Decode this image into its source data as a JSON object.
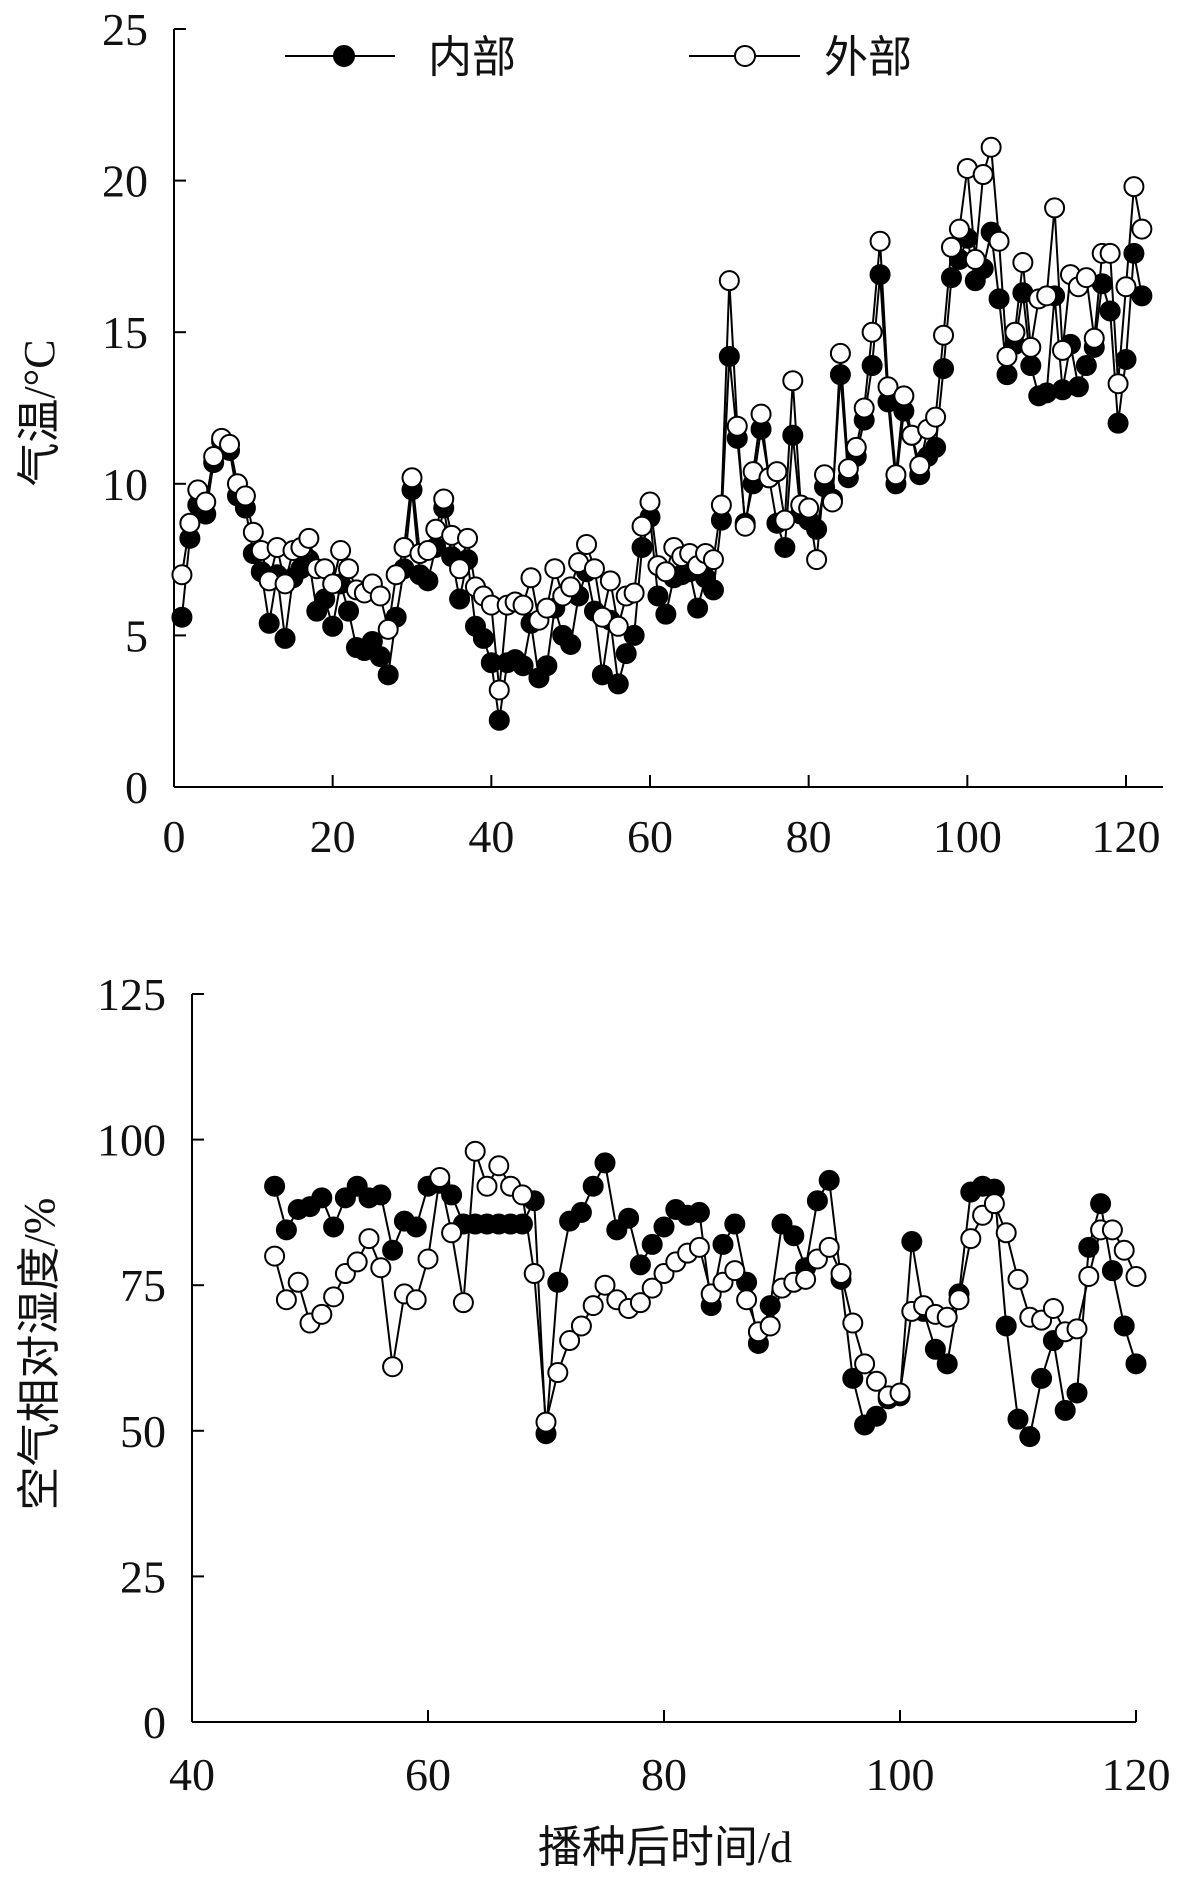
{
  "chart_data": [
    {
      "type": "line",
      "title": "",
      "xlabel": "",
      "ylabel": "气温/°C",
      "xlim": [
        0,
        120
      ],
      "ylim": [
        0,
        25
      ],
      "xticks": [
        "0",
        "20",
        "40",
        "60",
        "80",
        "100",
        "120"
      ],
      "yticks": [
        "0",
        "5",
        "10",
        "15",
        "20",
        "25"
      ],
      "legend": {
        "placement": "top",
        "entries": [
          "内部",
          "外部"
        ]
      },
      "x_start": 1,
      "series": [
        {
          "name": "内部",
          "marker": "filled-circle",
          "values": [
            5.6,
            8.2,
            9.3,
            9.0,
            10.7,
            11.4,
            11.1,
            9.6,
            9.2,
            7.7,
            7.1,
            5.4,
            7.0,
            4.9,
            6.9,
            7.2,
            7.5,
            5.8,
            6.2,
            5.3,
            6.7,
            5.8,
            4.6,
            4.5,
            4.8,
            4.3,
            3.7,
            5.6,
            7.2,
            9.8,
            7.0,
            6.8,
            7.9,
            9.2,
            7.6,
            6.2,
            7.5,
            5.3,
            4.9,
            4.1,
            2.2,
            4.1,
            4.2,
            4.0,
            5.4,
            3.6,
            4.0,
            5.9,
            5.0,
            4.7,
            6.3,
            7.1,
            5.8,
            3.7,
            5.5,
            3.4,
            4.4,
            5.0,
            7.9,
            8.9,
            6.3,
            5.7,
            6.9,
            7.0,
            7.1,
            5.9,
            6.9,
            6.5,
            8.8,
            14.2,
            11.5,
            8.7,
            10.0,
            11.8,
            10.2,
            8.7,
            7.9,
            11.6,
            9.0,
            8.8,
            8.5,
            9.9,
            9.5,
            13.6,
            10.2,
            10.9,
            12.1,
            13.9,
            16.9,
            12.7,
            10.0,
            12.4,
            11.6,
            10.3,
            10.9,
            11.2,
            13.8,
            16.8,
            17.4,
            18.1,
            16.7,
            17.1,
            18.3,
            16.1,
            13.6,
            14.6,
            16.3,
            13.9,
            12.9,
            13.0,
            16.2,
            13.1,
            14.6,
            13.2,
            13.9,
            14.5,
            16.6,
            15.7,
            12.0,
            14.1,
            17.6,
            16.2
          ]
        },
        {
          "name": "外部",
          "marker": "open-circle",
          "values": [
            7.0,
            8.7,
            9.8,
            9.4,
            10.9,
            11.5,
            11.3,
            10.0,
            9.6,
            8.4,
            7.8,
            6.8,
            7.9,
            6.7,
            7.8,
            7.9,
            8.2,
            7.2,
            7.2,
            6.7,
            7.8,
            7.2,
            6.5,
            6.4,
            6.7,
            6.3,
            5.2,
            7.0,
            7.9,
            10.2,
            7.7,
            7.8,
            8.5,
            9.5,
            8.3,
            7.2,
            8.2,
            6.6,
            6.3,
            6.0,
            3.2,
            6.0,
            6.1,
            6.0,
            6.9,
            5.5,
            5.9,
            7.2,
            6.3,
            6.6,
            7.4,
            8.0,
            7.2,
            5.6,
            6.8,
            5.3,
            6.3,
            6.4,
            8.6,
            9.4,
            7.3,
            7.1,
            7.9,
            7.6,
            7.7,
            7.3,
            7.7,
            7.5,
            9.3,
            16.7,
            11.9,
            8.6,
            10.4,
            12.3,
            10.2,
            10.4,
            8.8,
            13.4,
            9.3,
            9.2,
            7.5,
            10.3,
            9.4,
            14.3,
            10.5,
            11.2,
            12.5,
            15.0,
            18.0,
            13.2,
            10.3,
            12.9,
            11.6,
            10.6,
            11.8,
            12.2,
            14.9,
            17.8,
            18.4,
            20.4,
            17.4,
            20.2,
            21.1,
            18.0,
            14.2,
            15.0,
            17.3,
            14.5,
            16.1,
            16.2,
            19.1,
            14.4,
            16.9,
            16.5,
            16.8,
            14.8,
            17.6,
            17.6,
            13.3,
            16.5,
            19.8,
            18.4
          ]
        }
      ]
    },
    {
      "type": "line",
      "title": "",
      "xlabel": "播种后时间/d",
      "ylabel": "空气相对湿度/%",
      "xlim": [
        40,
        120
      ],
      "ylim": [
        0,
        125
      ],
      "xticks": [
        "40",
        "60",
        "80",
        "100",
        "120"
      ],
      "yticks": [
        "0",
        "25",
        "50",
        "75",
        "100",
        "125"
      ],
      "x_start": 47,
      "series": [
        {
          "name": "内部",
          "marker": "filled-circle",
          "values": [
            92,
            84.5,
            88,
            88.5,
            90,
            85,
            90,
            92,
            90,
            90.5,
            81,
            86,
            85,
            92,
            92.5,
            90.5,
            85.5,
            85.5,
            85.5,
            85.5,
            85.5,
            85.5,
            89.5,
            49.5,
            75.5,
            86,
            87.5,
            92,
            96,
            84.5,
            86.5,
            78.5,
            82,
            85,
            88,
            87,
            87.5,
            71.5,
            82,
            85.5,
            75.5,
            65,
            71.5,
            85.5,
            83.5,
            78,
            89.5,
            93,
            76,
            59,
            51,
            52.5,
            55.5,
            56,
            82.5,
            70.5,
            64,
            61.5,
            73.5,
            91,
            92,
            91.5,
            68,
            52,
            49,
            59,
            65.5,
            53.5,
            56.5,
            81.5,
            89,
            77.5,
            68,
            61.5
          ]
        },
        {
          "name": "外部",
          "marker": "open-circle",
          "values": [
            80,
            72.5,
            75.5,
            68.5,
            70,
            73,
            77,
            79,
            83,
            78,
            61,
            73.5,
            72.5,
            79.5,
            93.5,
            84,
            72,
            98,
            92,
            95.5,
            92,
            90.5,
            77,
            51.5,
            60,
            65.5,
            68,
            71.5,
            75,
            72.5,
            71,
            72,
            74.5,
            77,
            79,
            80.5,
            81.5,
            73.5,
            75.5,
            77.5,
            72.5,
            67,
            68,
            74.5,
            75.5,
            76,
            79.5,
            81.5,
            77,
            68.5,
            61.5,
            58.5,
            56,
            56.5,
            70.5,
            71.5,
            70,
            69.5,
            72.5,
            83,
            87,
            89,
            84,
            76,
            69.5,
            69,
            71,
            67,
            67.5,
            76.5,
            84.5,
            84.5,
            81,
            76.5
          ]
        }
      ]
    }
  ]
}
